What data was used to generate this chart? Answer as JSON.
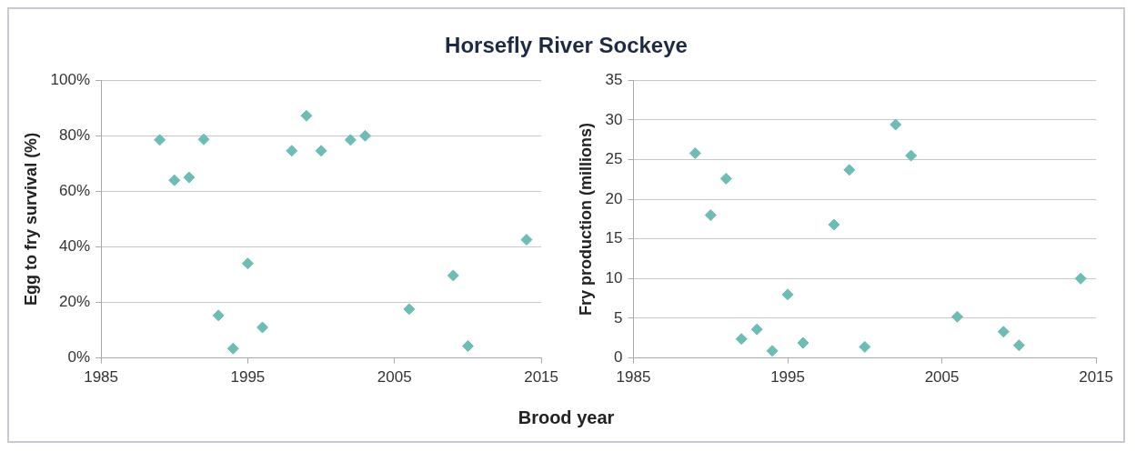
{
  "chart_data": [
    {
      "type": "scatter",
      "title": "Horsefly River Sockeye",
      "xlabel": "Brood year",
      "ylabel": "Egg to fry survival (%)",
      "x": [
        1989,
        1990,
        1991,
        1992,
        1993,
        1994,
        1995,
        1996,
        1998,
        1999,
        2000,
        2002,
        2003,
        2006,
        2009,
        2010,
        2014
      ],
      "series": [
        {
          "color": "#6cbdb5",
          "values": [
            78.5,
            64,
            65,
            78.7,
            15.3,
            3.4,
            34,
            11,
            74.6,
            87.2,
            74.6,
            78.5,
            80,
            17.6,
            29.7,
            4.3,
            42.6
          ]
        }
      ],
      "xlim": [
        1985,
        2015
      ],
      "xticks": [
        1985,
        1995,
        2005,
        2015
      ],
      "ylim": [
        0,
        100
      ],
      "yticks": [
        {
          "value": 0,
          "label": "0%"
        },
        {
          "value": 20,
          "label": "20%"
        },
        {
          "value": 40,
          "label": "40%"
        },
        {
          "value": 60,
          "label": "60%"
        },
        {
          "value": 80,
          "label": "80%"
        },
        {
          "value": 100,
          "label": "100%"
        }
      ],
      "grid": "y",
      "legend": false,
      "marker": "diamond"
    },
    {
      "type": "scatter",
      "ylabel": "Fry production (millions)",
      "x": [
        1989,
        1990,
        1991,
        1992,
        1993,
        1994,
        1995,
        1996,
        1998,
        1999,
        2000,
        2002,
        2003,
        2006,
        2009,
        2010,
        2014
      ],
      "series": [
        {
          "color": "#6cbdb5",
          "values": [
            25.8,
            18,
            22.6,
            2.4,
            3.6,
            0.9,
            8,
            1.9,
            16.8,
            23.7,
            1.4,
            29.4,
            25.5,
            5.2,
            3.3,
            1.6,
            10
          ]
        }
      ],
      "xlim": [
        1985,
        2015
      ],
      "xticks": [
        1985,
        1995,
        2005,
        2015
      ],
      "ylim": [
        0,
        35
      ],
      "yticks": [
        0,
        5,
        10,
        15,
        20,
        25,
        30,
        35
      ],
      "grid": "y",
      "legend": false,
      "marker": "diamond"
    }
  ]
}
